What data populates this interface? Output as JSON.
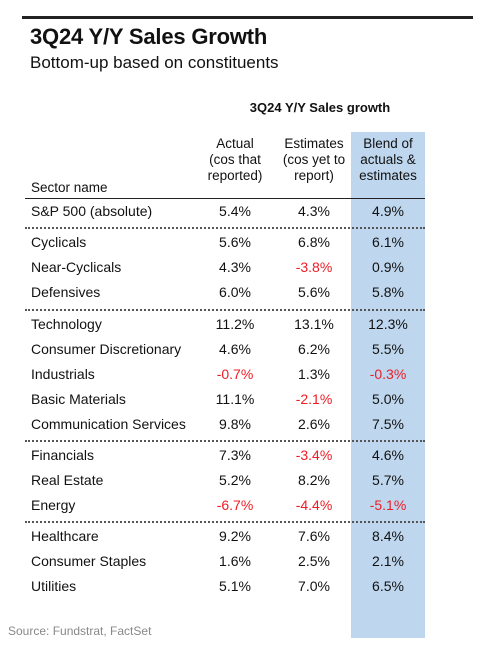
{
  "header": {
    "title": "3Q24 Y/Y Sales Growth",
    "subtitle": "Bottom-up based on constituents"
  },
  "table": {
    "title": "3Q24 Y/Y Sales growth",
    "columns": {
      "sector": "Sector name",
      "actual": "Actual\n(cos that\nreported)",
      "estimates": "Estimates\n(cos yet to\nreport)",
      "blend": "Blend of\nactuals &\nestimates"
    },
    "highlight_color": "#bfd7ee",
    "negative_color": "#ee1c25",
    "rows": [
      {
        "sector": "S&P 500 (absolute)",
        "actual": "5.4%",
        "estimates": "4.3%",
        "blend": "4.9%"
      },
      {
        "sector": "Cyclicals",
        "actual": "5.6%",
        "estimates": "6.8%",
        "blend": "6.1%"
      },
      {
        "sector": "Near-Cyclicals",
        "actual": "4.3%",
        "estimates": "-3.8%",
        "blend": "0.9%"
      },
      {
        "sector": "Defensives",
        "actual": "6.0%",
        "estimates": "5.6%",
        "blend": "5.8%"
      },
      {
        "sector": "Technology",
        "actual": "11.2%",
        "estimates": "13.1%",
        "blend": "12.3%"
      },
      {
        "sector": "Consumer Discretionary",
        "actual": "4.6%",
        "estimates": "6.2%",
        "blend": "5.5%"
      },
      {
        "sector": "Industrials",
        "actual": "-0.7%",
        "estimates": "1.3%",
        "blend": "-0.3%"
      },
      {
        "sector": "Basic Materials",
        "actual": "11.1%",
        "estimates": "-2.1%",
        "blend": "5.0%"
      },
      {
        "sector": "Communication Services",
        "actual": "9.8%",
        "estimates": "2.6%",
        "blend": "7.5%"
      },
      {
        "sector": "Financials",
        "actual": "7.3%",
        "estimates": "-3.4%",
        "blend": "4.6%"
      },
      {
        "sector": "Real Estate",
        "actual": "5.2%",
        "estimates": "8.2%",
        "blend": "5.7%"
      },
      {
        "sector": "Energy",
        "actual": "-6.7%",
        "estimates": "-4.4%",
        "blend": "-5.1%"
      },
      {
        "sector": "Healthcare",
        "actual": "9.2%",
        "estimates": "7.6%",
        "blend": "8.4%"
      },
      {
        "sector": "Consumer Staples",
        "actual": "1.6%",
        "estimates": "2.5%",
        "blend": "2.1%"
      },
      {
        "sector": "Utilities",
        "actual": "5.1%",
        "estimates": "7.0%",
        "blend": "6.5%"
      }
    ]
  },
  "footer": {
    "source": "Source: Fundstrat, FactSet"
  }
}
